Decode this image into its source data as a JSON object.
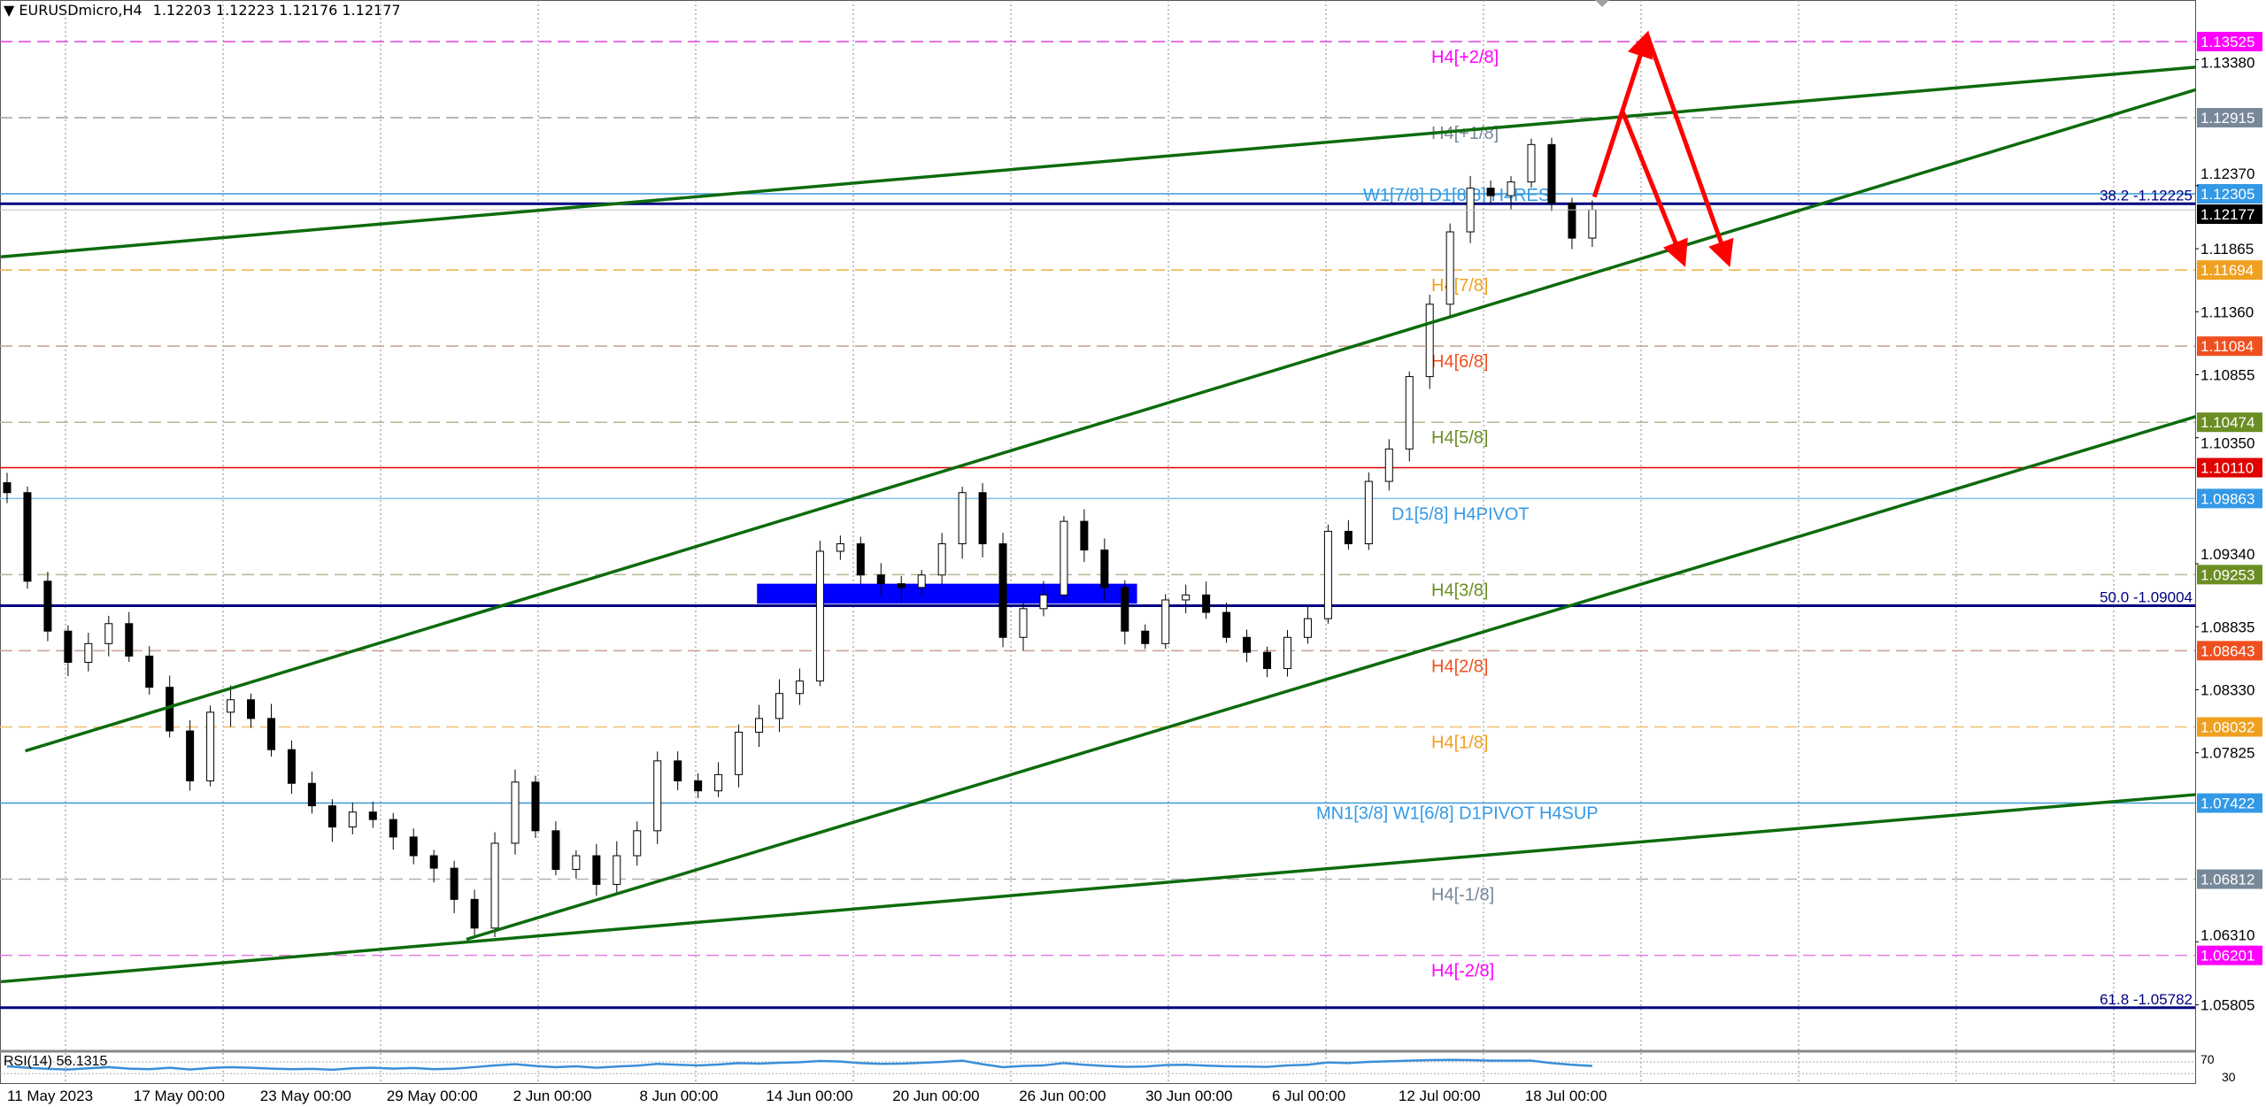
{
  "header": {
    "menu_icon": "triangle-down-icon",
    "symbol": "EURUSDmicro,H4",
    "ohlc": "1.12203 1.12223 1.12176 1.12177"
  },
  "chart_data": {
    "type": "candlestick",
    "symbol": "EURUSDmicro",
    "timeframe": "H4",
    "ylim": [
      1.056,
      1.139
    ],
    "grid": true,
    "x_tick_labels": [
      "11 May 2023",
      "17 May 00:00",
      "23 May 00:00",
      "29 May 00:00",
      "2 Jun 00:00",
      "8 Jun 00:00",
      "14 Jun 00:00",
      "20 Jun 00:00",
      "26 Jun 00:00",
      "30 Jun 00:00",
      "6 Jul 00:00",
      "12 Jul 00:00",
      "18 Jul 00:00"
    ],
    "y_tick_labels": [
      "1.13380",
      "1.12370",
      "1.11865",
      "1.11360",
      "1.10855",
      "1.10350",
      "1.09340",
      "1.08835",
      "1.08330",
      "1.07825",
      "1.06310",
      "1.05805"
    ],
    "closes": [
      1.0991,
      1.092,
      1.088,
      1.0855,
      1.087,
      1.0886,
      1.086,
      1.0835,
      1.08,
      1.076,
      1.0815,
      1.0825,
      1.081,
      1.0785,
      1.0758,
      1.074,
      1.0723,
      1.0735,
      1.0729,
      1.0715,
      1.07,
      1.069,
      1.0665,
      1.0642,
      1.071,
      1.0759,
      1.072,
      1.0689,
      1.07,
      1.0677,
      1.07,
      1.072,
      1.0776,
      1.076,
      1.0752,
      1.0765,
      1.0799,
      1.081,
      1.083,
      1.084,
      1.0944,
      1.095,
      1.0925,
      1.0918,
      1.0915,
      1.0925,
      1.095,
      1.0991,
      1.095,
      1.0875,
      1.0898,
      1.0909,
      1.0968,
      1.0945,
      1.0915,
      1.088,
      1.087,
      1.0905,
      1.0909,
      1.0895,
      1.0875,
      1.0863,
      1.085,
      1.0875,
      1.089,
      1.096,
      1.095,
      1.1,
      1.1026,
      1.1084,
      1.1142,
      1.12,
      1.1235,
      1.1229,
      1.124,
      1.127,
      1.1223,
      1.1195,
      1.12177
    ],
    "current_price": {
      "value": "1.12177",
      "color": "#000000"
    },
    "levels": [
      {
        "price": 1.13525,
        "label": "H4[+2/8]",
        "badge": "1.13525",
        "color": "#e040e0",
        "badge_color": "#ff00ff",
        "style": "dashed"
      },
      {
        "price": 1.12915,
        "label": "H4[+1/8]",
        "badge": "1.12915",
        "color": "#a0a0a0",
        "badge_color": "#778899",
        "style": "dashed"
      },
      {
        "price": 1.12305,
        "label": "W1[7/8] D1[8/8] H4RES",
        "badge": "1.12305",
        "color": "#3a9ad9",
        "badge_color": "#3399e6",
        "style": "solid",
        "label_inline": true
      },
      {
        "price": 1.11694,
        "label": "H4[7/8]",
        "badge": "1.11694",
        "color": "#f0b040",
        "badge_color": "#f0a020",
        "style": "dashed"
      },
      {
        "price": 1.11084,
        "label": "H4[6/8]",
        "badge": "1.11084",
        "color": "#c8a090",
        "badge_color": "#f05020",
        "style": "dashed",
        "label_color": "#f05020"
      },
      {
        "price": 1.10474,
        "label": "H4[5/8]",
        "badge": "1.10474",
        "color": "#b0b890",
        "badge_color": "#6b8e23",
        "style": "dashed",
        "label_color": "#6b8e23"
      },
      {
        "price": 1.1011,
        "label": "",
        "badge": "1.10110",
        "color": "#e00000",
        "badge_color": "#e00000",
        "style": "solid"
      },
      {
        "price": 1.09863,
        "label": "D1[5/8] H4PIVOT",
        "badge": "1.09863",
        "color": "#7fbfe8",
        "badge_color": "#3399e6",
        "style": "solid"
      },
      {
        "price": 1.09253,
        "label": "H4[3/8]",
        "badge": "1.09253",
        "color": "#b0b890",
        "badge_color": "#6b8e23",
        "style": "dashed",
        "label_color": "#6b8e23"
      },
      {
        "price": 1.08643,
        "label": "H4[2/8]",
        "badge": "1.08643",
        "color": "#c8a090",
        "badge_color": "#f05020",
        "style": "dashed",
        "label_color": "#f05020"
      },
      {
        "price": 1.08032,
        "label": "H4[1/8]",
        "badge": "1.08032",
        "color": "#f0c070",
        "badge_color": "#f0a020",
        "style": "dashed"
      },
      {
        "price": 1.07422,
        "label": "MN1[3/8] W1[6/8] D1PIVOT H4SUP",
        "badge": "1.07422",
        "color": "#3a9ad9",
        "badge_color": "#3399e6",
        "style": "solid"
      },
      {
        "price": 1.06812,
        "label": "H4[-1/8]",
        "badge": "1.06812",
        "color": "#b0b0b0",
        "badge_color": "#778899",
        "style": "dashed"
      },
      {
        "price": 1.06201,
        "label": "H4[-2/8]",
        "badge": "1.06201",
        "color": "#e080e0",
        "badge_color": "#ff00ff",
        "style": "dashed"
      }
    ],
    "fibonacci": [
      {
        "price": 1.12225,
        "label": "38.2 -1.12225"
      },
      {
        "price": 1.09004,
        "label": "50.0 -1.09004"
      },
      {
        "price": 1.05782,
        "label": "61.8 -1.05782"
      }
    ],
    "fib_color": "#000080",
    "trendlines": [
      {
        "from": {
          "bar": -0.3,
          "price": 1.118
        },
        "to": {
          "bar": 107.7,
          "price": 1.1332
        }
      },
      {
        "from": {
          "bar": 0.9,
          "price": 1.0784
        },
        "to": {
          "bar": 107.7,
          "price": 1.1314
        }
      },
      {
        "from": {
          "bar": 22.6,
          "price": 1.0633
        },
        "to": {
          "bar": 107.7,
          "price": 1.1052
        }
      },
      {
        "from": {
          "bar": -0.3,
          "price": 1.0599
        },
        "to": {
          "bar": 107.7,
          "price": 1.0749
        }
      }
    ],
    "trendline_color": "#0d6b0d",
    "zone": {
      "from_bar": 36.9,
      "to_bar": 55.6,
      "price_high": 1.0918,
      "price_low": 1.0902,
      "color": "#0000ff"
    },
    "arrows": [
      {
        "points": [
          {
            "bar": 78.1,
            "price": 1.1228
          },
          {
            "bar": 80.7,
            "price": 1.1358
          }
        ]
      },
      {
        "points": [
          {
            "bar": 80.7,
            "price": 1.1358
          },
          {
            "bar": 84.7,
            "price": 1.1175
          }
        ]
      },
      {
        "points": [
          {
            "bar": 79.5,
            "price": 1.1296
          },
          {
            "bar": 82.5,
            "price": 1.1175
          }
        ]
      }
    ],
    "arrow_color": "#ff0000",
    "rsi": {
      "label": "RSI(14) 56.1315",
      "period": 14,
      "levels": [
        70,
        30
      ],
      "level_labels": [
        "70",
        "30"
      ],
      "color": "#3a8fd9",
      "values": [
        55,
        50,
        46,
        44,
        48,
        52,
        47,
        45,
        50,
        44,
        49,
        52,
        50,
        47,
        45,
        46,
        43,
        48,
        50,
        47,
        49,
        45,
        47,
        52,
        58,
        62,
        56,
        52,
        55,
        50,
        54,
        57,
        63,
        60,
        58,
        61,
        66,
        64,
        67,
        69,
        73,
        71,
        66,
        63,
        64,
        67,
        70,
        74,
        62,
        52,
        56,
        58,
        66,
        60,
        56,
        53,
        54,
        59,
        60,
        57,
        55,
        54,
        53,
        58,
        60,
        68,
        66,
        70,
        72,
        74,
        76,
        77,
        76,
        74,
        74,
        74,
        66,
        60,
        56
      ]
    }
  }
}
